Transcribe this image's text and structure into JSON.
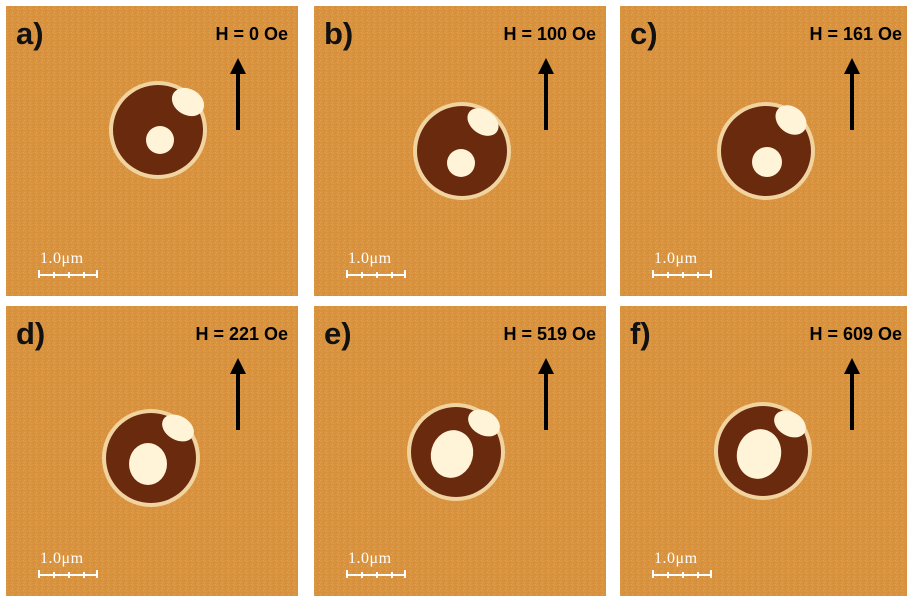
{
  "panels": [
    {
      "label": "a)",
      "field": "H = 0 Oe",
      "scale": "1.0μm"
    },
    {
      "label": "b)",
      "field": "H = 100 Oe",
      "scale": "1.0μm"
    },
    {
      "label": "c)",
      "field": "H = 161 Oe",
      "scale": "1.0μm"
    },
    {
      "label": "d)",
      "field": "H = 221 Oe",
      "scale": "1.0μm"
    },
    {
      "label": "e)",
      "field": "H = 519 Oe",
      "scale": "1.0μm"
    },
    {
      "label": "f)",
      "field": "H = 609 Oe",
      "scale": "1.0μm"
    }
  ],
  "colors": {
    "background": "#d9933f",
    "background_light": "#e8b26a",
    "disk_dark": "#6a2a0e",
    "disk_rim": "#f3d8a8",
    "domain_bright": "#fff3d8"
  }
}
